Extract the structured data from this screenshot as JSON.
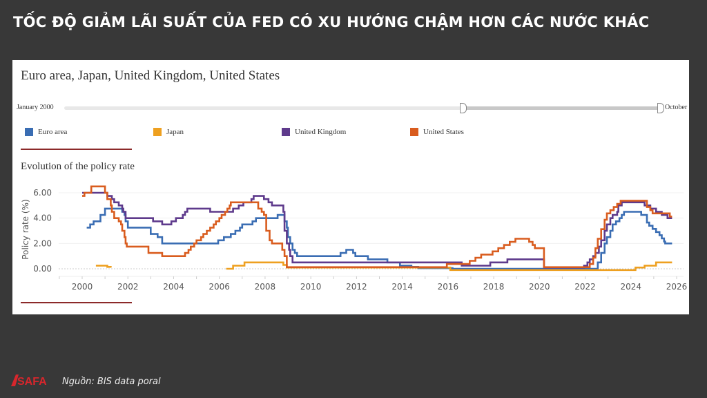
{
  "headline": "TỐC ĐỘ GIẢM LÃI SUẤT CỦA FED CÓ XU HƯỚNG CHẬM HƠN CÁC NƯỚC KHÁC",
  "card_title": "Euro area, Japan, United Kingdom, United States",
  "slider": {
    "start_label": "January 2000",
    "end_label": "October"
  },
  "source": "Nguồn: BIS data poral",
  "logo_text": "SAFA",
  "chart_data": {
    "type": "line",
    "title": "Evolution of the policy rate",
    "xlabel": "",
    "ylabel": "Policy rate (%)",
    "xlim": [
      1999,
      2026.4
    ],
    "ylim": [
      -0.6,
      7
    ],
    "yticks": [
      "0.00",
      "2.00",
      "4.00",
      "6.00"
    ],
    "xticks": [
      "2000",
      "2002",
      "2004",
      "2006",
      "2008",
      "2010",
      "2012",
      "2014",
      "2016",
      "2018",
      "2020",
      "2022",
      "2024",
      "2026"
    ],
    "legend_position": "top",
    "step": true,
    "series": [
      {
        "name": "Euro area",
        "color": "#3a6db3",
        "points": [
          [
            2000.2,
            3.25
          ],
          [
            2000.35,
            3.5
          ],
          [
            2000.5,
            3.75
          ],
          [
            2000.8,
            4.25
          ],
          [
            2001.0,
            4.75
          ],
          [
            2001.75,
            4.5
          ],
          [
            2001.85,
            4.25
          ],
          [
            2001.9,
            3.75
          ],
          [
            2002.0,
            3.25
          ],
          [
            2003.0,
            2.75
          ],
          [
            2003.3,
            2.5
          ],
          [
            2003.5,
            2.0
          ],
          [
            2005.95,
            2.25
          ],
          [
            2006.2,
            2.5
          ],
          [
            2006.5,
            2.75
          ],
          [
            2006.7,
            3.0
          ],
          [
            2006.9,
            3.25
          ],
          [
            2007.0,
            3.5
          ],
          [
            2007.45,
            3.75
          ],
          [
            2007.6,
            4.0
          ],
          [
            2008.55,
            4.25
          ],
          [
            2008.85,
            3.75
          ],
          [
            2008.95,
            3.25
          ],
          [
            2009.0,
            2.5
          ],
          [
            2009.1,
            2.0
          ],
          [
            2009.2,
            1.5
          ],
          [
            2009.3,
            1.25
          ],
          [
            2009.4,
            1.0
          ],
          [
            2011.3,
            1.25
          ],
          [
            2011.55,
            1.5
          ],
          [
            2011.85,
            1.25
          ],
          [
            2011.95,
            1.0
          ],
          [
            2012.5,
            0.75
          ],
          [
            2013.35,
            0.5
          ],
          [
            2013.9,
            0.25
          ],
          [
            2014.4,
            0.15
          ],
          [
            2014.7,
            0.05
          ],
          [
            2016.2,
            0.0
          ],
          [
            2022.55,
            0.5
          ],
          [
            2022.7,
            1.25
          ],
          [
            2022.85,
            2.0
          ],
          [
            2022.95,
            2.5
          ],
          [
            2023.1,
            3.0
          ],
          [
            2023.2,
            3.5
          ],
          [
            2023.35,
            3.75
          ],
          [
            2023.5,
            4.0
          ],
          [
            2023.6,
            4.25
          ],
          [
            2023.7,
            4.5
          ],
          [
            2024.45,
            4.25
          ],
          [
            2024.7,
            3.65
          ],
          [
            2024.8,
            3.4
          ],
          [
            2024.95,
            3.15
          ],
          [
            2025.1,
            2.9
          ],
          [
            2025.25,
            2.65
          ],
          [
            2025.35,
            2.4
          ],
          [
            2025.45,
            2.15
          ],
          [
            2025.5,
            2.0
          ],
          [
            2025.8,
            2.0
          ]
        ]
      },
      {
        "name": "Japan",
        "color": "#eea020",
        "points": [
          [
            2000.6,
            0.25
          ],
          [
            2001.1,
            0.15
          ],
          [
            2001.25,
            0.1
          ],
          [
            2001.3,
            null
          ],
          [
            2006.3,
            0.0
          ],
          [
            2006.6,
            0.25
          ],
          [
            2007.1,
            0.5
          ],
          [
            2008.8,
            0.3
          ],
          [
            2008.95,
            0.1
          ],
          [
            2016.1,
            -0.1
          ],
          [
            2024.2,
            0.1
          ],
          [
            2024.6,
            0.25
          ],
          [
            2025.1,
            0.5
          ],
          [
            2025.8,
            0.5
          ]
        ]
      },
      {
        "name": "United Kingdom",
        "color": "#5e3a8c",
        "points": [
          [
            2000.0,
            6.0
          ],
          [
            2001.1,
            5.75
          ],
          [
            2001.3,
            5.5
          ],
          [
            2001.4,
            5.25
          ],
          [
            2001.6,
            5.0
          ],
          [
            2001.75,
            4.75
          ],
          [
            2001.8,
            4.5
          ],
          [
            2001.9,
            4.0
          ],
          [
            2003.1,
            3.75
          ],
          [
            2003.5,
            3.5
          ],
          [
            2003.9,
            3.75
          ],
          [
            2004.1,
            4.0
          ],
          [
            2004.4,
            4.25
          ],
          [
            2004.5,
            4.5
          ],
          [
            2004.6,
            4.75
          ],
          [
            2005.6,
            4.5
          ],
          [
            2006.6,
            4.75
          ],
          [
            2006.85,
            5.0
          ],
          [
            2007.05,
            5.25
          ],
          [
            2007.4,
            5.5
          ],
          [
            2007.5,
            5.75
          ],
          [
            2007.95,
            5.5
          ],
          [
            2008.15,
            5.25
          ],
          [
            2008.3,
            5.0
          ],
          [
            2008.8,
            4.5
          ],
          [
            2008.85,
            3.0
          ],
          [
            2008.95,
            2.0
          ],
          [
            2009.05,
            1.5
          ],
          [
            2009.1,
            1.0
          ],
          [
            2009.2,
            0.5
          ],
          [
            2016.6,
            0.25
          ],
          [
            2017.85,
            0.5
          ],
          [
            2018.6,
            0.75
          ],
          [
            2020.2,
            0.1
          ],
          [
            2021.95,
            0.25
          ],
          [
            2022.1,
            0.5
          ],
          [
            2022.2,
            0.75
          ],
          [
            2022.35,
            1.0
          ],
          [
            2022.45,
            1.25
          ],
          [
            2022.6,
            1.75
          ],
          [
            2022.7,
            2.25
          ],
          [
            2022.85,
            3.0
          ],
          [
            2022.95,
            3.5
          ],
          [
            2023.1,
            4.0
          ],
          [
            2023.2,
            4.25
          ],
          [
            2023.4,
            4.5
          ],
          [
            2023.45,
            5.0
          ],
          [
            2023.6,
            5.25
          ],
          [
            2024.6,
            5.0
          ],
          [
            2024.85,
            4.75
          ],
          [
            2025.1,
            4.5
          ],
          [
            2025.35,
            4.25
          ],
          [
            2025.6,
            4.0
          ],
          [
            2025.8,
            4.0
          ]
        ]
      },
      {
        "name": "United States",
        "color": "#d95c1e",
        "points": [
          [
            2000.0,
            5.75
          ],
          [
            2000.1,
            6.0
          ],
          [
            2000.4,
            6.5
          ],
          [
            2001.0,
            6.0
          ],
          [
            2001.1,
            5.5
          ],
          [
            2001.25,
            5.0
          ],
          [
            2001.3,
            4.5
          ],
          [
            2001.4,
            4.0
          ],
          [
            2001.6,
            3.75
          ],
          [
            2001.7,
            3.5
          ],
          [
            2001.75,
            3.0
          ],
          [
            2001.85,
            2.5
          ],
          [
            2001.9,
            2.0
          ],
          [
            2001.95,
            1.75
          ],
          [
            2002.9,
            1.25
          ],
          [
            2003.5,
            1.0
          ],
          [
            2004.5,
            1.25
          ],
          [
            2004.65,
            1.5
          ],
          [
            2004.75,
            1.75
          ],
          [
            2004.9,
            2.0
          ],
          [
            2005.0,
            2.25
          ],
          [
            2005.2,
            2.5
          ],
          [
            2005.3,
            2.75
          ],
          [
            2005.45,
            3.0
          ],
          [
            2005.6,
            3.25
          ],
          [
            2005.75,
            3.5
          ],
          [
            2005.85,
            3.75
          ],
          [
            2006.0,
            4.0
          ],
          [
            2006.1,
            4.25
          ],
          [
            2006.25,
            4.5
          ],
          [
            2006.35,
            4.75
          ],
          [
            2006.45,
            5.0
          ],
          [
            2006.5,
            5.25
          ],
          [
            2007.7,
            4.75
          ],
          [
            2007.85,
            4.5
          ],
          [
            2007.95,
            4.25
          ],
          [
            2008.05,
            3.0
          ],
          [
            2008.2,
            2.25
          ],
          [
            2008.3,
            2.0
          ],
          [
            2008.75,
            1.5
          ],
          [
            2008.85,
            1.0
          ],
          [
            2008.95,
            0.125
          ],
          [
            2015.95,
            0.375
          ],
          [
            2016.95,
            0.625
          ],
          [
            2017.2,
            0.875
          ],
          [
            2017.45,
            1.125
          ],
          [
            2017.95,
            1.375
          ],
          [
            2018.2,
            1.625
          ],
          [
            2018.45,
            1.875
          ],
          [
            2018.7,
            2.125
          ],
          [
            2018.95,
            2.375
          ],
          [
            2019.55,
            2.125
          ],
          [
            2019.7,
            1.875
          ],
          [
            2019.8,
            1.625
          ],
          [
            2020.2,
            0.125
          ],
          [
            2022.2,
            0.375
          ],
          [
            2022.35,
            0.875
          ],
          [
            2022.45,
            1.625
          ],
          [
            2022.55,
            2.375
          ],
          [
            2022.7,
            3.125
          ],
          [
            2022.85,
            3.875
          ],
          [
            2022.95,
            4.375
          ],
          [
            2023.1,
            4.625
          ],
          [
            2023.25,
            4.875
          ],
          [
            2023.4,
            5.125
          ],
          [
            2023.55,
            5.375
          ],
          [
            2024.7,
            4.875
          ],
          [
            2024.85,
            4.625
          ],
          [
            2024.95,
            4.375
          ],
          [
            2025.7,
            4.125
          ],
          [
            2025.8,
            4.125
          ]
        ]
      }
    ]
  }
}
